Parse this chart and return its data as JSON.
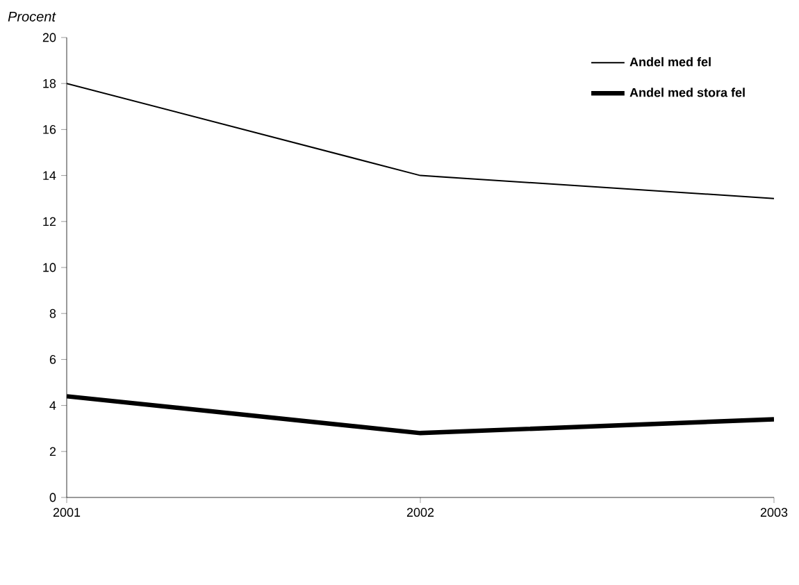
{
  "chart_data": {
    "type": "line",
    "ylabel": "Procent",
    "x": [
      2001,
      2002,
      2003
    ],
    "series": [
      {
        "name": "Andel med fel",
        "color": "#000000",
        "values": [
          18,
          14,
          13
        ]
      },
      {
        "name": "Andel med stora fel",
        "color": "#000000",
        "values": [
          4.4,
          2.8,
          3.4
        ]
      }
    ],
    "xlim": [
      2001,
      2003
    ],
    "xticks": [
      2001,
      2002,
      2003
    ],
    "ylim": [
      0,
      20
    ],
    "yticks": [
      0,
      2,
      4,
      6,
      8,
      10,
      12,
      14,
      16,
      18,
      20
    ],
    "legend": "top right",
    "marker": "none",
    "line_style": "solid",
    "grid": false
  }
}
